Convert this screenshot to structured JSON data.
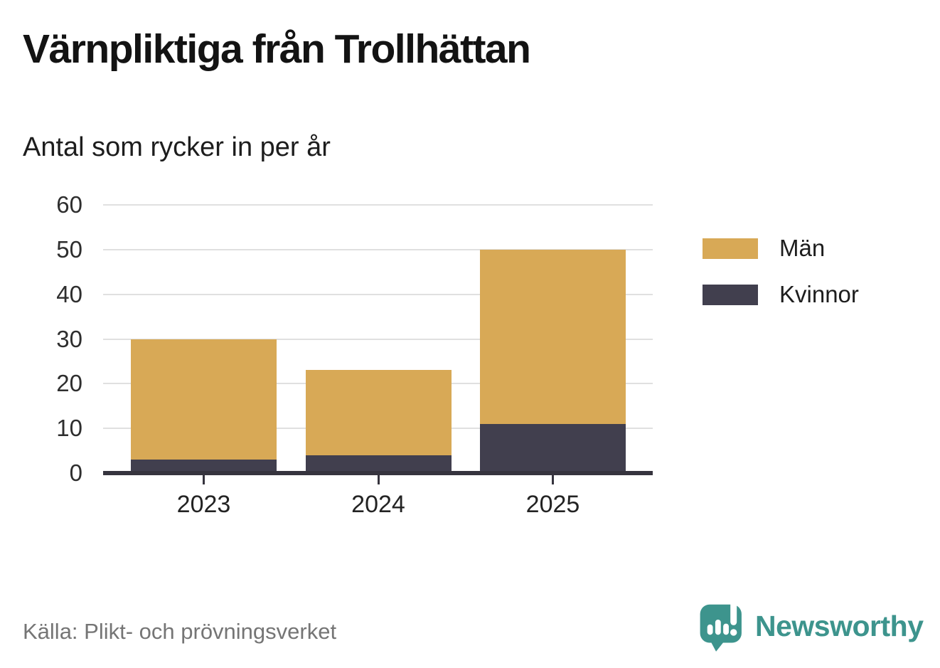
{
  "chart_data": {
    "type": "bar",
    "stacked": true,
    "title": "Värnpliktiga från Trollhättan",
    "subtitle": "Antal som rycker in per år",
    "categories": [
      "2023",
      "2024",
      "2025"
    ],
    "series": [
      {
        "name": "Män",
        "color": "#d8a956",
        "values": [
          27,
          19,
          39
        ]
      },
      {
        "name": "Kvinnor",
        "color": "#413f4e",
        "values": [
          3,
          4,
          11
        ]
      }
    ],
    "stack_order_bottom_to_top": [
      "Kvinnor",
      "Män"
    ],
    "totals": [
      30,
      23,
      50
    ],
    "ylim": [
      0,
      60
    ],
    "yticks": [
      0,
      10,
      20,
      30,
      40,
      50,
      60
    ],
    "grid": true,
    "legend_position": "right"
  },
  "footer": {
    "source": "Källa: Plikt- och prövningsverket",
    "brand": "Newsworthy"
  },
  "colors": {
    "men": "#d8a956",
    "women": "#413f4e",
    "axis": "#36343e",
    "gridline": "#e0e0e0",
    "brand_teal": "#3d948d",
    "source_text": "#757575",
    "title_text": "#131313"
  }
}
